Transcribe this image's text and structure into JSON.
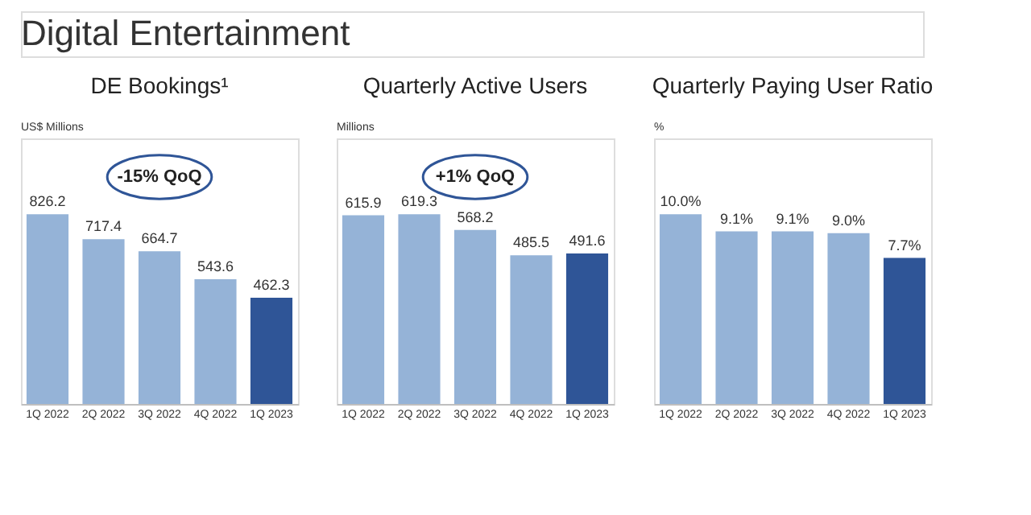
{
  "chart_data": [
    {
      "type": "other",
      "title": "Digital Entertainment"
    },
    {
      "type": "bar",
      "title": "DE Bookings¹",
      "ylabel": "US$ Millions",
      "annotations": [
        "-15% QoQ"
      ],
      "categories": [
        "1Q 2022",
        "2Q 2022",
        "3Q 2022",
        "4Q 2022",
        "1Q 2023"
      ],
      "values": [
        826.2,
        717.4,
        664.7,
        543.6,
        462.3
      ],
      "colors": [
        "#95b3d7",
        "#95b3d7",
        "#95b3d7",
        "#95b3d7",
        "#2f5597"
      ],
      "data_labels": true,
      "grid": false
    },
    {
      "type": "bar",
      "title": "Quarterly Active Users",
      "ylabel": "Millions",
      "annotations": [
        "+1% QoQ"
      ],
      "categories": [
        "1Q 2022",
        "2Q 2022",
        "3Q 2022",
        "4Q 2022",
        "1Q 2023"
      ],
      "values": [
        615.9,
        619.3,
        568.2,
        485.5,
        491.6
      ],
      "colors": [
        "#95b3d7",
        "#95b3d7",
        "#95b3d7",
        "#95b3d7",
        "#2f5597"
      ],
      "data_labels": true,
      "grid": false
    },
    {
      "type": "bar",
      "title": "Quarterly Paying User Ratio",
      "ylabel": "%",
      "categories": [
        "1Q 2022",
        "2Q 2022",
        "3Q 2022",
        "4Q 2022",
        "1Q 2023"
      ],
      "values": [
        10.0,
        9.1,
        9.1,
        9.0,
        7.7
      ],
      "value_labels": [
        "10.0%",
        "9.1%",
        "9.1%",
        "9.0%",
        "7.7%"
      ],
      "colors": [
        "#95b3d7",
        "#95b3d7",
        "#95b3d7",
        "#95b3d7",
        "#2f5597"
      ],
      "grid": false
    }
  ]
}
